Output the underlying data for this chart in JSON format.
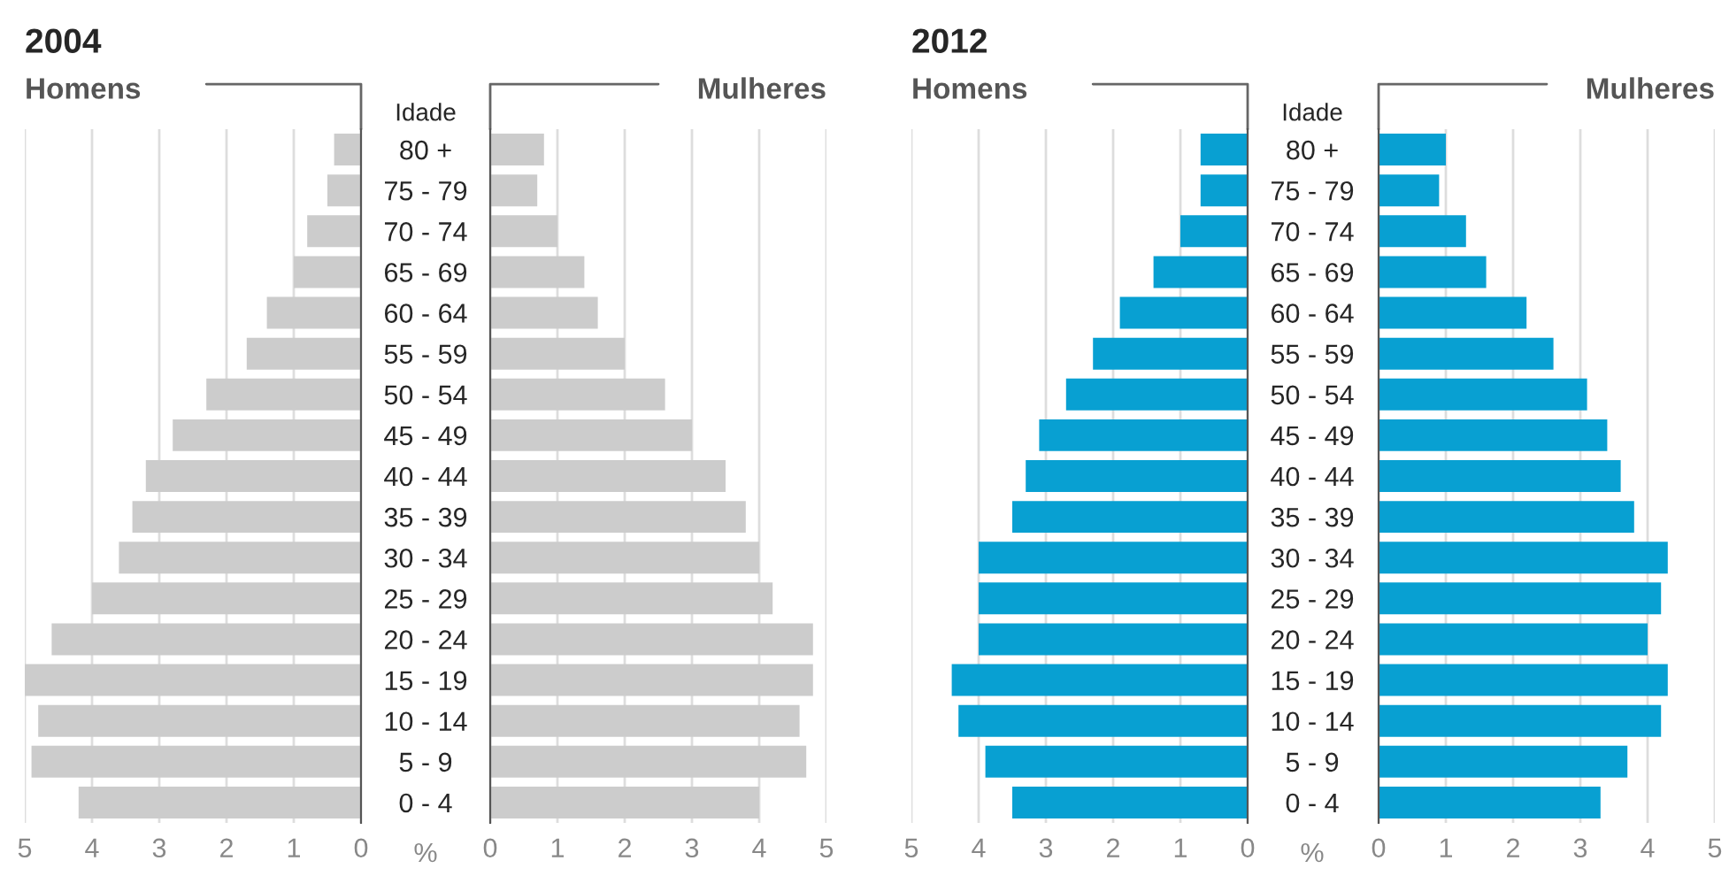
{
  "chart_data": [
    {
      "type": "bar",
      "orientation": "horizontal",
      "title": "2004",
      "ylabel": "Idade",
      "xlabel": "%",
      "grid": "x",
      "categories": [
        "80 +",
        "75 - 79",
        "70 - 74",
        "65 - 69",
        "60 - 64",
        "55 - 59",
        "50 - 54",
        "45 - 49",
        "40 - 44",
        "35 - 39",
        "30 - 34",
        "25 - 29",
        "20 - 24",
        "15 - 19",
        "10 - 14",
        "5 - 9",
        "0 - 4"
      ],
      "series": [
        {
          "name": "Homens",
          "color": "#cccccc",
          "values": [
            0.4,
            0.5,
            0.8,
            1.0,
            1.4,
            1.7,
            2.3,
            2.8,
            3.2,
            3.4,
            3.6,
            4.0,
            4.6,
            5.0,
            4.8,
            4.9,
            4.2
          ]
        }
      ],
      "xlim": [
        5,
        0
      ],
      "xticks": [
        5,
        4,
        3,
        2,
        1,
        0
      ]
    },
    {
      "type": "bar",
      "orientation": "horizontal",
      "grid": "x",
      "tick_labels": "x",
      "categories": [
        null,
        null,
        null,
        null,
        null,
        null,
        null,
        null,
        null,
        null,
        null,
        null,
        null,
        null,
        null,
        null,
        null
      ],
      "series": [
        {
          "name": "Mulheres",
          "color": "#cccccc",
          "values": [
            0.8,
            0.7,
            1.0,
            1.4,
            1.6,
            2.0,
            2.6,
            3.0,
            3.5,
            3.8,
            4.0,
            4.2,
            4.8,
            4.8,
            4.6,
            4.7,
            4.0
          ]
        }
      ],
      "xlim": [
        0,
        5
      ],
      "xticks": [
        0,
        1,
        2,
        3,
        4,
        5
      ]
    },
    {
      "type": "bar",
      "orientation": "horizontal",
      "title": "2012",
      "ylabel": "Idade",
      "xlabel": "%",
      "grid": "x",
      "categories": [
        "80 +",
        "75 - 79",
        "70 - 74",
        "65 - 69",
        "60 - 64",
        "55 - 59",
        "50 - 54",
        "45 - 49",
        "40 - 44",
        "35 - 39",
        "30 - 34",
        "25 - 29",
        "20 - 24",
        "15 - 19",
        "10 - 14",
        "5 - 9",
        "0 - 4"
      ],
      "series": [
        {
          "name": "Homens",
          "color": "#08a0d2",
          "values": [
            0.7,
            0.7,
            1.0,
            1.4,
            1.9,
            2.3,
            2.7,
            3.1,
            3.3,
            3.5,
            4.0,
            4.0,
            4.0,
            4.4,
            4.3,
            3.9,
            3.5
          ]
        }
      ],
      "xlim": [
        5,
        0
      ],
      "xticks": [
        5,
        4,
        3,
        2,
        1,
        0
      ]
    },
    {
      "type": "bar",
      "orientation": "horizontal",
      "grid": "x",
      "tick_labels": "x",
      "categories": [
        null,
        null,
        null,
        null,
        null,
        null,
        null,
        null,
        null,
        null,
        null,
        null,
        null,
        null,
        null,
        null,
        null
      ],
      "series": [
        {
          "name": "Mulheres",
          "color": "#08a0d2",
          "values": [
            1.0,
            0.9,
            1.3,
            1.6,
            2.2,
            2.6,
            3.1,
            3.4,
            3.6,
            3.8,
            4.3,
            4.2,
            4.0,
            4.3,
            4.2,
            3.7,
            3.3
          ]
        }
      ],
      "xlim": [
        0,
        5
      ],
      "xticks": [
        0,
        1,
        2,
        3,
        4,
        5
      ]
    }
  ]
}
